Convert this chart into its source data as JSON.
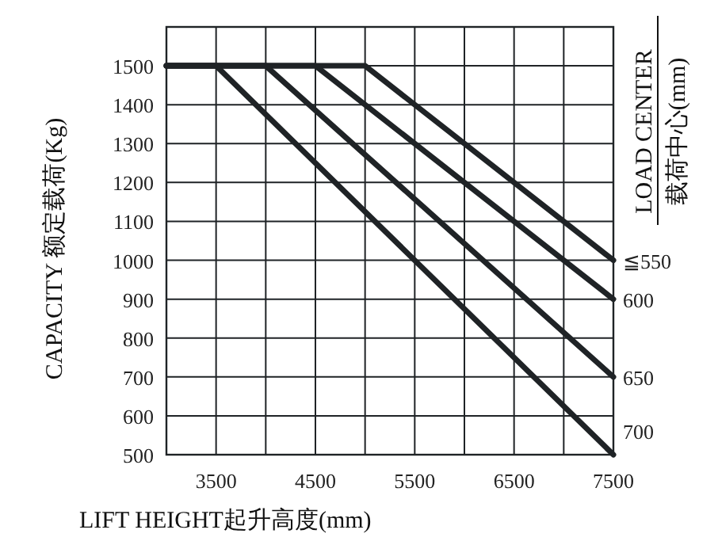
{
  "chart_data": {
    "type": "line",
    "xlabel": "LIFT HEIGHT起升高度(mm)",
    "ylabel": "CAPACITY 额定载荷(Kg)",
    "y2label": "LOAD CENTER 载荷中心(mm)",
    "xlim": [
      3000,
      7500
    ],
    "ylim": [
      500,
      1600
    ],
    "xticks": [
      {
        "value": 3000,
        "label": null
      },
      3500,
      {
        "value": 4000,
        "label": null
      },
      4500,
      {
        "value": 5000,
        "label": null
      },
      5500,
      {
        "value": 6000,
        "label": null
      },
      6500,
      {
        "value": 7000,
        "label": null
      },
      7500
    ],
    "yticks": [
      500,
      600,
      700,
      800,
      900,
      1000,
      1100,
      1200,
      1300,
      1400,
      1500
    ],
    "grid": true,
    "marker": "none",
    "line_style": "solid",
    "series": [
      {
        "name": "≦550",
        "color": "#1f2326",
        "x": [
          3000,
          5000,
          7500
        ],
        "values": [
          1500,
          1500,
          1000
        ]
      },
      {
        "name": "600",
        "color": "#1f2326",
        "x": [
          3000,
          4500,
          7500
        ],
        "values": [
          1500,
          1500,
          900
        ]
      },
      {
        "name": "650",
        "color": "#1f2326",
        "x": [
          3000,
          4000,
          7500
        ],
        "values": [
          1500,
          1500,
          700
        ]
      },
      {
        "name": "700",
        "color": "#1f2326",
        "x": [
          3000,
          3500,
          7500
        ],
        "values": [
          1500,
          1500,
          500
        ]
      }
    ]
  }
}
